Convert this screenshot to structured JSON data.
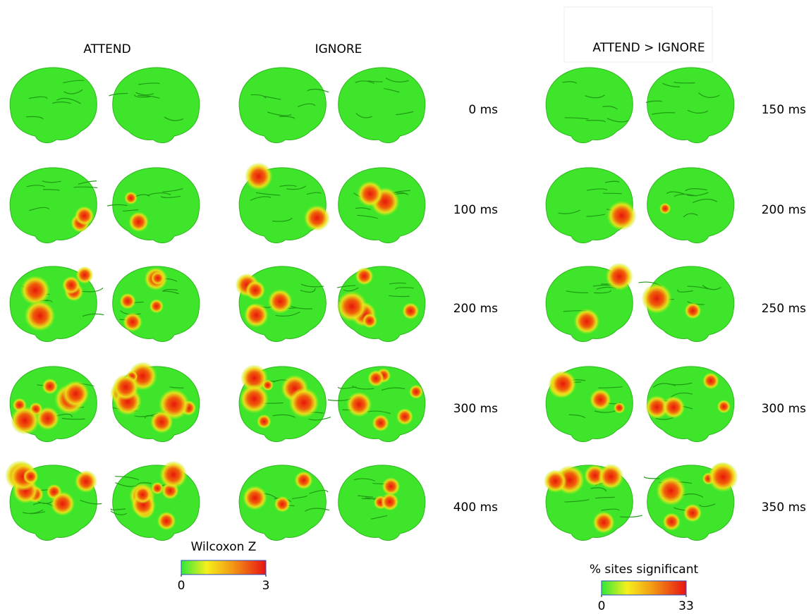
{
  "headers": [
    "ATTEND",
    "IGNORE",
    "ATTEND > IGNORE"
  ],
  "left_times": [
    "0 ms",
    "100 ms",
    "200 ms",
    "300 ms",
    "400 ms"
  ],
  "right_times": [
    "150 ms",
    "200 ms",
    "250 ms",
    "300 ms",
    "350 ms"
  ],
  "colorbars": [
    {
      "label": "Wilcoxon Z",
      "ticks": [
        0,
        3
      ]
    },
    {
      "label": "% sites significant",
      "ticks": [
        0,
        33
      ]
    }
  ]
}
